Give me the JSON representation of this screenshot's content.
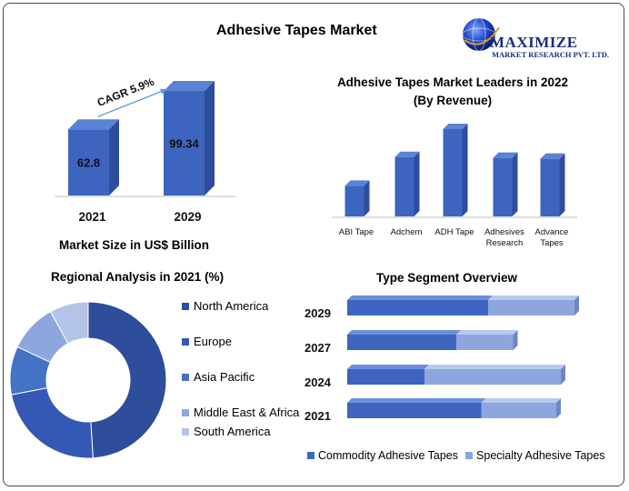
{
  "page": {
    "title": "Adhesive Tapes Market"
  },
  "logo": {
    "line1": "MAXIMIZE",
    "line2": "MARKET RESEARCH PVT. LTD."
  },
  "colors": {
    "primary": "#4472C4",
    "dark": "#2E4D9A",
    "mid": "#3D65C0",
    "light": "#8EA6DE",
    "lighter": "#B4C3E8",
    "arrow": "#5B9BD5"
  },
  "chart_data": [
    {
      "type": "bar",
      "title": "Market Size in US$ Billion",
      "categories": [
        "2021",
        "2029"
      ],
      "values": [
        62.8,
        99.34
      ],
      "data_labels": [
        "62.8",
        "99.34"
      ],
      "annotation": "CAGR 5.9%"
    },
    {
      "type": "bar",
      "title": "Adhesive Tapes Market Leaders in 2022",
      "subtitle": "(By Revenue)",
      "categories": [
        "ABI Tape",
        "Adchem",
        "ADH Tape",
        "Adhesives Research",
        "Advance Tapes"
      ],
      "values": [
        3.5,
        6.8,
        10.0,
        6.7,
        6.6
      ],
      "ylim": [
        0,
        10
      ]
    },
    {
      "type": "pie",
      "title": "Regional Analysis in 2021 (%)",
      "categories": [
        "North America",
        "Europe",
        "Asia Pacific",
        "Middle East & Africa",
        "South America"
      ],
      "values": [
        49,
        23,
        10,
        10,
        8
      ],
      "donut": true,
      "legend": "right"
    },
    {
      "type": "bar",
      "orientation": "horizontal",
      "stacked": true,
      "title": "Type Segment Overview",
      "categories": [
        "2029",
        "2027",
        "2024",
        "2021"
      ],
      "series": [
        {
          "name": "Commodity Adhesive Tapes",
          "values": [
            62,
            48,
            34,
            59
          ]
        },
        {
          "name": "Specialty Adhesive Tapes",
          "values": [
            38,
            25,
            60,
            33
          ]
        }
      ],
      "legend": "bottom"
    }
  ]
}
